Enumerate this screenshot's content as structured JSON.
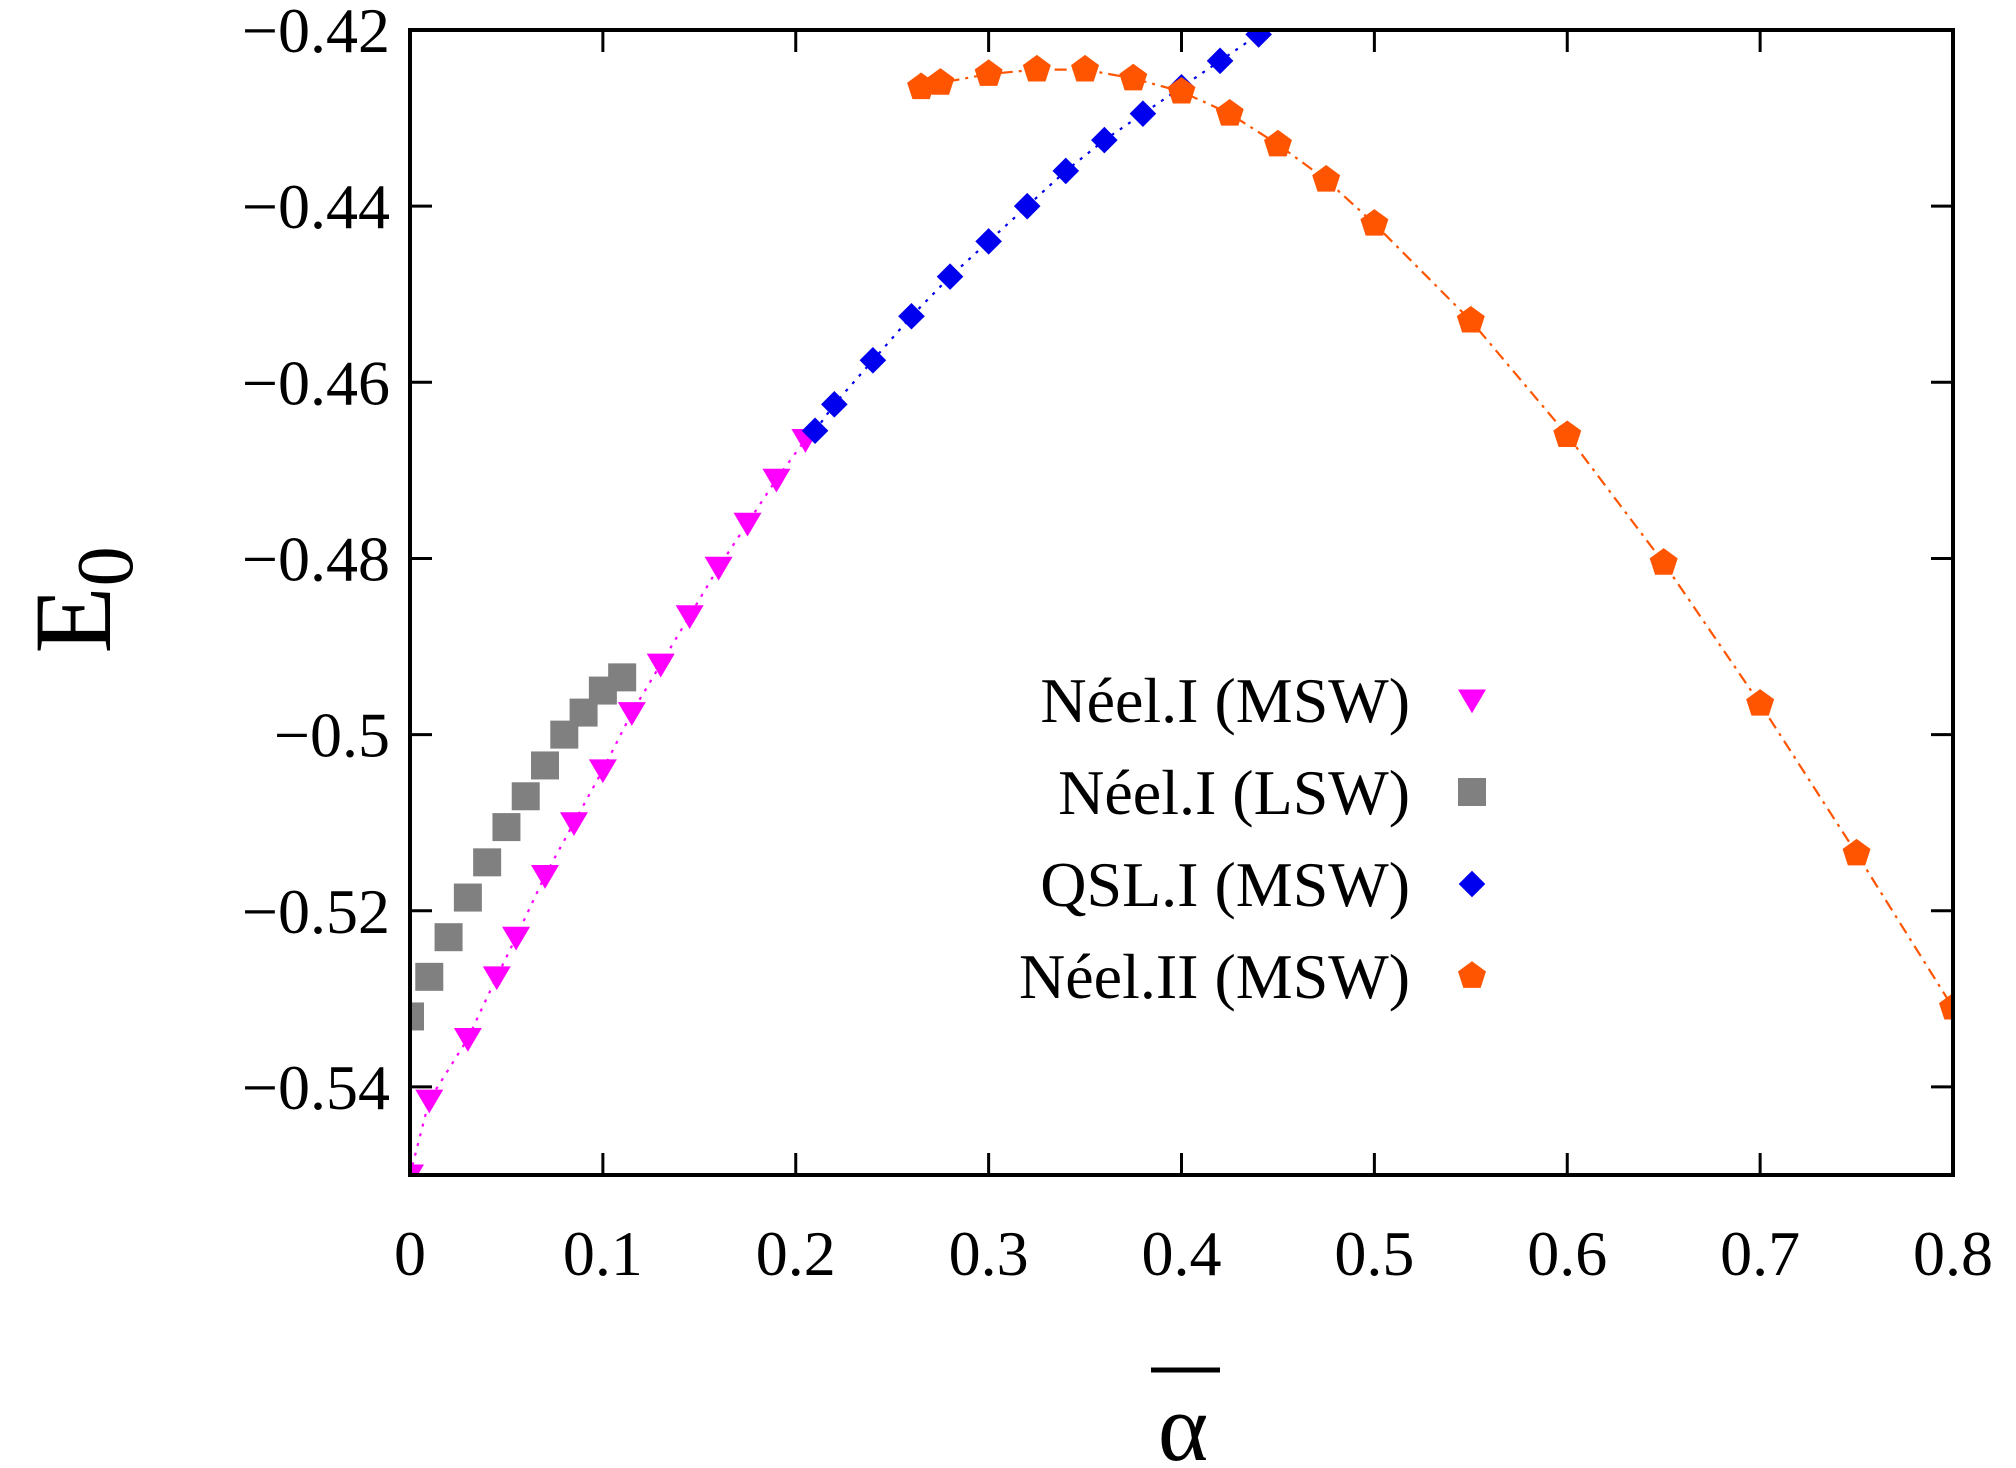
{
  "chart_data": {
    "type": "scatter",
    "title": "",
    "xlabel": "α",
    "ylabel": "E",
    "ylabel_subscript": "0",
    "xlim": [
      0,
      0.8
    ],
    "ylim": [
      -0.55,
      -0.42
    ],
    "x_ticks": [
      0,
      0.1,
      0.2,
      0.3,
      0.4,
      0.5,
      0.6,
      0.7,
      0.8
    ],
    "x_tick_labels": [
      "0",
      "0.1",
      "0.2",
      "0.3",
      "0.4",
      "0.5",
      "0.6",
      "0.7",
      "0.8"
    ],
    "y_ticks": [
      -0.54,
      -0.52,
      -0.5,
      -0.48,
      -0.46,
      -0.44,
      -0.42
    ],
    "y_tick_labels": [
      "−0.54",
      "−0.52",
      "−0.5",
      "−0.48",
      "−0.46",
      "−0.44",
      "−0.42"
    ],
    "grid": false,
    "legend_position": "center-right",
    "series": [
      {
        "name": "Néel.I (MSW)",
        "marker": "triangle-down",
        "color": "#ff00ff",
        "line": "dotted",
        "x": [
          0,
          0.01,
          0.03,
          0.045,
          0.055,
          0.07,
          0.085,
          0.1,
          0.115,
          0.13,
          0.145,
          0.16,
          0.175,
          0.19,
          0.205
        ],
        "y": [
          -0.55,
          -0.5415,
          -0.5345,
          -0.5275,
          -0.523,
          -0.516,
          -0.51,
          -0.504,
          -0.4975,
          -0.492,
          -0.4865,
          -0.481,
          -0.476,
          -0.471,
          -0.4665
        ]
      },
      {
        "name": "Néel.I (LSW)",
        "marker": "square",
        "color": "#808080",
        "line": "none",
        "x": [
          0,
          0.01,
          0.02,
          0.03,
          0.04,
          0.05,
          0.06,
          0.07,
          0.08,
          0.09,
          0.1,
          0.11
        ],
        "y": [
          -0.532,
          -0.5275,
          -0.523,
          -0.5185,
          -0.5145,
          -0.5105,
          -0.507,
          -0.5035,
          -0.5,
          -0.4975,
          -0.495,
          -0.4935
        ]
      },
      {
        "name": "QSL.I (MSW)",
        "marker": "diamond",
        "color": "#0000ee",
        "line": "dotted",
        "x": [
          0.21,
          0.22,
          0.24,
          0.26,
          0.28,
          0.3,
          0.32,
          0.34,
          0.36,
          0.38,
          0.4,
          0.42,
          0.44
        ],
        "y": [
          -0.4655,
          -0.4625,
          -0.4575,
          -0.4525,
          -0.448,
          -0.444,
          -0.44,
          -0.436,
          -0.4325,
          -0.4295,
          -0.4265,
          -0.4235,
          -0.4205
        ]
      },
      {
        "name": "Néel.II (MSW)",
        "marker": "pentagon",
        "color": "#ff5500",
        "line": "dash-dot",
        "x": [
          0.265,
          0.275,
          0.3,
          0.325,
          0.35,
          0.375,
          0.4,
          0.425,
          0.45,
          0.475,
          0.5,
          0.55,
          0.6,
          0.65,
          0.7,
          0.75,
          0.8
        ],
        "y": [
          -0.4265,
          -0.426,
          -0.425,
          -0.4245,
          -0.4245,
          -0.4255,
          -0.427,
          -0.4295,
          -0.433,
          -0.437,
          -0.442,
          -0.453,
          -0.466,
          -0.4805,
          -0.4965,
          -0.5135,
          -0.531
        ]
      }
    ]
  }
}
